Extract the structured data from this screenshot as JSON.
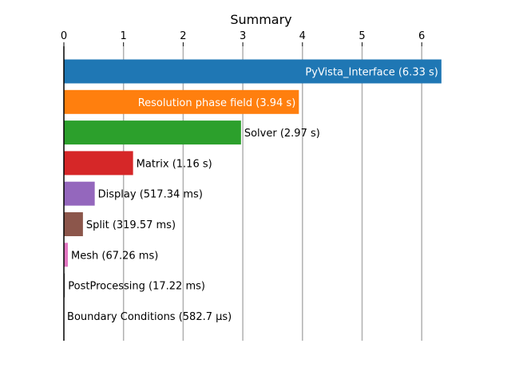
{
  "chart_data": {
    "type": "bar",
    "orientation": "horizontal",
    "title": "Summary",
    "xlabel": "",
    "ylabel": "",
    "xlim": [
      0,
      6.35
    ],
    "x_ticks": [
      0,
      1,
      2,
      3,
      4,
      5,
      6
    ],
    "x_tick_labels": [
      "0",
      "1",
      "2",
      "3",
      "4",
      "5",
      "6"
    ],
    "x_axis_position": "top",
    "grid": "vertical",
    "categories": [
      "PyVista_Interface",
      "Resolution phase field",
      "Solver",
      "Matrix",
      "Display",
      "Split",
      "Mesh",
      "PostProcessing",
      "Boundary Conditions"
    ],
    "values": [
      6.33,
      3.94,
      2.97,
      1.16,
      0.51734,
      0.31957,
      0.06726,
      0.01722,
      0.0005827
    ],
    "labels": [
      "PyVista_Interface (6.33 s)",
      "Resolution phase field (3.94 s)",
      "Solver (2.97 s)",
      "Matrix (1.16 s)",
      "Display (517.34 ms)",
      "Split (319.57 ms)",
      "Mesh (67.26 ms)",
      "PostProcessing (17.22 ms)",
      "Boundary Conditions (582.7 µs)"
    ],
    "label_inside": [
      true,
      true,
      false,
      false,
      false,
      false,
      false,
      false,
      false
    ],
    "colors": [
      "#1f77b4",
      "#ff7f0e",
      "#2ca02c",
      "#d62728",
      "#9467bd",
      "#8c564b",
      "#e377c2",
      "#7f7f7f",
      "#bcbd22"
    ]
  }
}
